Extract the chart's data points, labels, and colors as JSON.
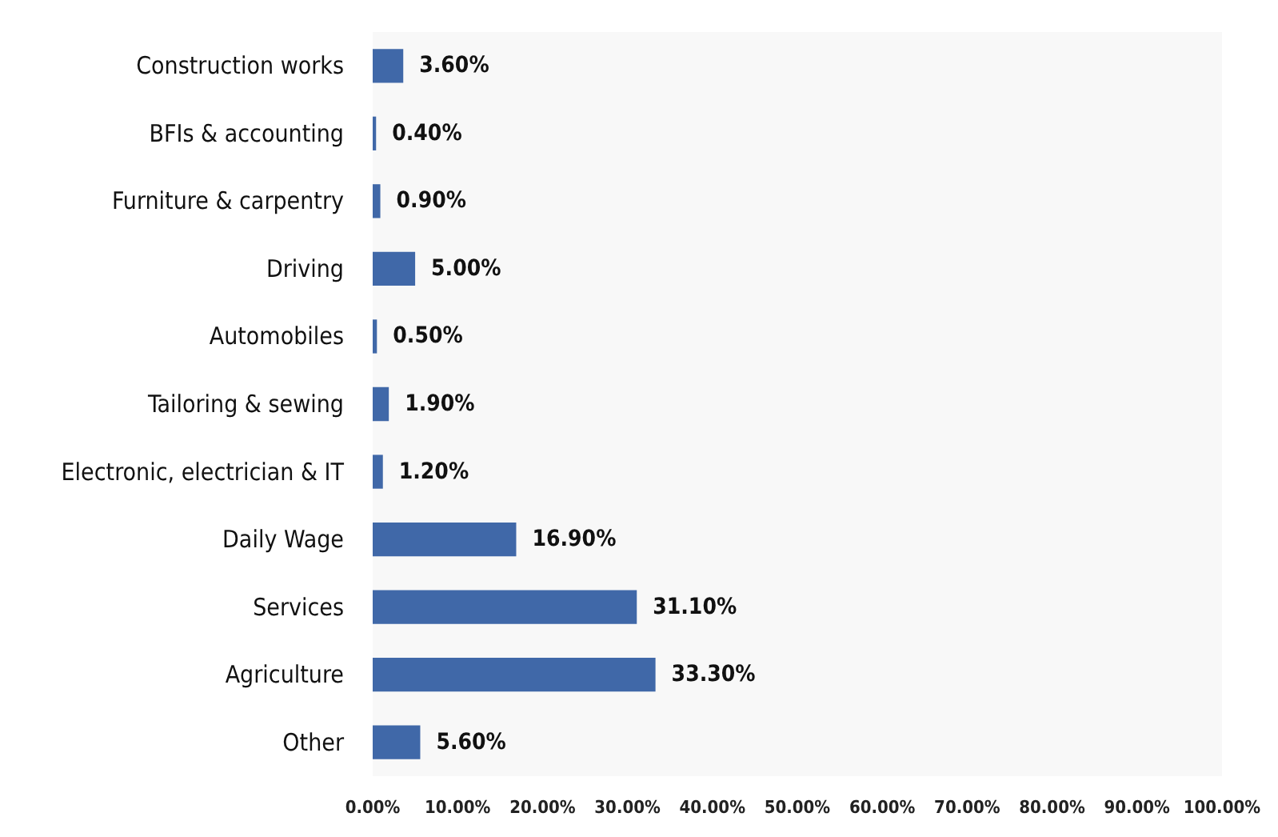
{
  "chart_data": {
    "type": "bar",
    "orientation": "horizontal",
    "categories": [
      "Construction works",
      "BFIs & accounting",
      "Furniture & carpentry",
      "Driving",
      "Automobiles",
      "Tailoring & sewing",
      "Electronic, electrician & IT",
      "Daily Wage",
      "Services",
      "Agriculture",
      "Other"
    ],
    "values": [
      3.6,
      0.4,
      0.9,
      5.0,
      0.5,
      1.9,
      1.2,
      16.9,
      31.1,
      33.3,
      5.6
    ],
    "value_labels": [
      "3.60%",
      "0.40%",
      "0.90%",
      "5.00%",
      "0.50%",
      "1.90%",
      "1.20%",
      "16.90%",
      "31.10%",
      "33.30%",
      "5.60%"
    ],
    "color": "#4068a8",
    "xlim": [
      0,
      100
    ],
    "xticks": [
      {
        "value": 0,
        "label": "0.00%"
      },
      {
        "value": 10,
        "label": "10.00%"
      },
      {
        "value": 20,
        "label": "20.00%"
      },
      {
        "value": 30,
        "label": "30.00%"
      },
      {
        "value": 40,
        "label": "40.00%"
      },
      {
        "value": 50,
        "label": "50.00%"
      },
      {
        "value": 60,
        "label": "60.00%"
      },
      {
        "value": 70,
        "label": "70.00%"
      },
      {
        "value": 80,
        "label": "80.00%"
      },
      {
        "value": 90,
        "label": "90.00%"
      },
      {
        "value": 100,
        "label": "100.00%"
      }
    ],
    "grid": false
  }
}
